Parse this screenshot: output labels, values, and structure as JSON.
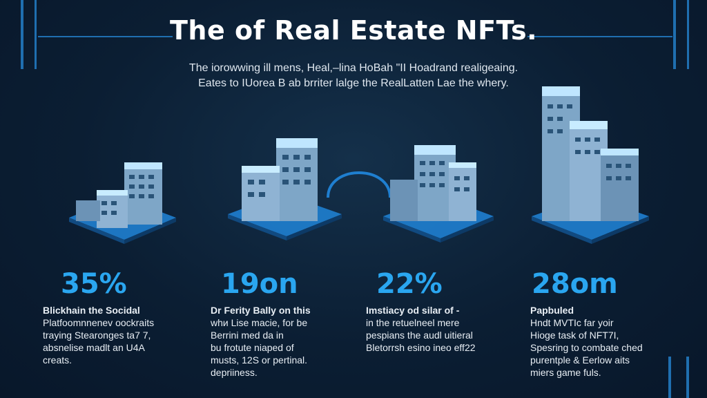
{
  "title": "The of Real Estate NFTs.",
  "subtitle": {
    "line1": "The iorowwing ill mens, Heal,–lina HoBah \"II Hoadrand realigeaing.",
    "line2": "Eates to IUorea B ab brriter lalge the RealLatten Lae the whery."
  },
  "colors": {
    "background": "#0b1e33",
    "accent": "#2aa6f0",
    "line": "#1f6fb0"
  },
  "stats": [
    {
      "value": "35%",
      "heading": "Blickhain the Socidal",
      "lines": [
        "Platfoomnnenev oockraits",
        "traying Stearonges ta7 7,",
        "absnelise madlt an U4A",
        "creats."
      ]
    },
    {
      "value": "19on",
      "heading": "Dr Ferity Bally on this",
      "lines": [
        "whи Lise macie, for be",
        "Berrini med da in",
        "bu frotute niaped of",
        "musts, 12S or pertinal.",
        "depriiness."
      ]
    },
    {
      "value": "22%",
      "heading": "Imstiacy od silar of -",
      "lines": [
        "in the retuelneel mere",
        "pespians the audl uitieral",
        "Bletorrsh esino ineo eff22"
      ]
    },
    {
      "value": "28om",
      "heading": "Papbuled",
      "lines": [
        "Hndt MVTIc far yoir",
        "Hioge task of NFT7I,",
        "Spesring to combate ched",
        "purentple & Eerlow aits",
        "miers game fuls."
      ]
    }
  ]
}
